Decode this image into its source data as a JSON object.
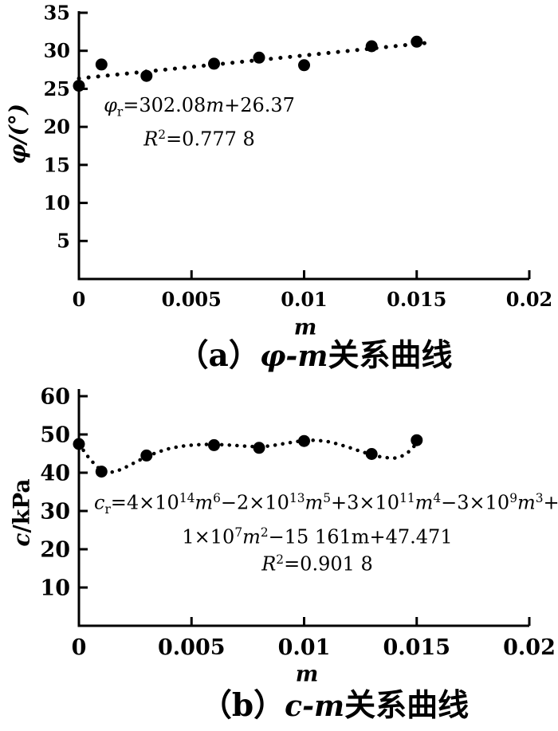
{
  "figure": {
    "background": "#ffffff",
    "ink_color": "#000000"
  },
  "chart_data": [
    {
      "id": "a",
      "type": "scatter",
      "caption_text": "（a）φ-m关系曲线",
      "caption": {
        "index": "（a）",
        "formula": "φ-m",
        "suffix": "关系曲线"
      },
      "xlabel": "m",
      "ylabel": "φ/(°)",
      "xlim": [
        0,
        0.02
      ],
      "ylim": [
        0,
        35
      ],
      "grid": false,
      "legend": null,
      "xticks": {
        "values": [
          0,
          0.005,
          0.01,
          0.015,
          0.02
        ],
        "labels": [
          "0",
          "0.005",
          "0.01",
          "0.015",
          "0.02"
        ]
      },
      "yticks": {
        "values": [
          5,
          10,
          15,
          20,
          25,
          30,
          35
        ],
        "labels": [
          "5",
          "10",
          "15",
          "20",
          "25",
          "30",
          "35"
        ]
      },
      "points": {
        "x": [
          0,
          0.001,
          0.003,
          0.006,
          0.008,
          0.01,
          0.013,
          0.015
        ],
        "y": [
          25.4,
          28.2,
          26.7,
          28.3,
          29.1,
          28.1,
          30.6,
          31.2
        ]
      },
      "fit": {
        "style": "dotted",
        "equation_text": "φr=302.08m+26.37",
        "r_squared_text": "R²=0.777 8",
        "line": [
          [
            0,
            26.37
          ],
          [
            0.01535,
            31.01
          ]
        ],
        "equation_lines": [
          [
            {
              "t": "φ",
              "s": "i"
            },
            {
              "t": "r",
              "s": "sub"
            },
            {
              "t": "=302.08",
              "s": ""
            },
            {
              "t": "m",
              "s": "i"
            },
            {
              "t": "+26.37",
              "s": ""
            }
          ],
          [
            {
              "t": "R",
              "s": "i"
            },
            {
              "t": "2",
              "s": "sup"
            },
            {
              "t": "=0.777 8",
              "s": ""
            }
          ]
        ]
      }
    },
    {
      "id": "b",
      "type": "scatter",
      "caption_text": "（b）c-m关系曲线",
      "caption": {
        "index": "（b）",
        "formula": "c-m",
        "suffix": "关系曲线"
      },
      "xlabel": "m",
      "ylabel": "c/kPa",
      "ylabel_segments": [
        {
          "t": "c",
          "s": "i"
        },
        {
          "t": "/kPa",
          "s": ""
        }
      ],
      "xlim": [
        0,
        0.02
      ],
      "ylim": [
        0,
        60
      ],
      "grid": false,
      "legend": null,
      "xticks": {
        "values": [
          0,
          0.005,
          0.01,
          0.015,
          0.02
        ],
        "labels": [
          "0",
          "0.005",
          "0.01",
          "0.015",
          "0.02"
        ]
      },
      "yticks": {
        "values": [
          10,
          20,
          30,
          40,
          50,
          60
        ],
        "labels": [
          "10",
          "20",
          "30",
          "40",
          "50",
          "60"
        ]
      },
      "points": {
        "x": [
          0,
          0.001,
          0.003,
          0.006,
          0.008,
          0.01,
          0.013,
          0.015
        ],
        "y": [
          47.5,
          40.3,
          44.5,
          47.2,
          46.5,
          48.3,
          44.9,
          48.5
        ]
      },
      "fit": {
        "style": "dotted",
        "equation_text": "cr=4×10^14m^6−2×10^13m^5+3×10^11m^4−3×10^9m^3+1×10^7m^2−15 161m+47.471",
        "r_squared_text": "R²=0.901 8",
        "line": [
          [
            0,
            47.5
          ],
          [
            0.0004,
            44.2
          ],
          [
            0.0008,
            41.5
          ],
          [
            0.0012,
            40.1
          ],
          [
            0.0016,
            40.2
          ],
          [
            0.002,
            41.2
          ],
          [
            0.0025,
            42.7
          ],
          [
            0.003,
            44.2
          ],
          [
            0.0035,
            45.4
          ],
          [
            0.004,
            46.3
          ],
          [
            0.0045,
            46.9
          ],
          [
            0.005,
            47.2
          ],
          [
            0.0055,
            47.4
          ],
          [
            0.006,
            47.4
          ],
          [
            0.0065,
            47.3
          ],
          [
            0.007,
            47.1
          ],
          [
            0.0075,
            46.9
          ],
          [
            0.008,
            46.8
          ],
          [
            0.0085,
            47.0
          ],
          [
            0.009,
            47.5
          ],
          [
            0.0095,
            48.0
          ],
          [
            0.01,
            48.4
          ],
          [
            0.0105,
            48.5
          ],
          [
            0.011,
            48.2
          ],
          [
            0.0115,
            47.5
          ],
          [
            0.012,
            46.6
          ],
          [
            0.0125,
            45.6
          ],
          [
            0.013,
            44.7
          ],
          [
            0.0135,
            44.0
          ],
          [
            0.014,
            43.8
          ],
          [
            0.0143,
            44.2
          ],
          [
            0.0146,
            45.2
          ],
          [
            0.0149,
            47.0
          ],
          [
            0.0151,
            48.4
          ]
        ],
        "equation_lines": [
          [
            {
              "t": "c",
              "s": "i"
            },
            {
              "t": "r",
              "s": "sub"
            },
            {
              "t": "=4×10",
              "s": ""
            },
            {
              "t": "14",
              "s": "sup"
            },
            {
              "t": "m",
              "s": "i"
            },
            {
              "t": "6",
              "s": "sup"
            },
            {
              "t": "−2×10",
              "s": ""
            },
            {
              "t": "13",
              "s": "sup"
            },
            {
              "t": "m",
              "s": "i"
            },
            {
              "t": "5",
              "s": "sup"
            },
            {
              "t": "+3×10",
              "s": ""
            },
            {
              "t": "11",
              "s": "sup"
            },
            {
              "t": "m",
              "s": "i"
            },
            {
              "t": "4",
              "s": "sup"
            },
            {
              "t": "−3×10",
              "s": ""
            },
            {
              "t": "9",
              "s": "sup"
            },
            {
              "t": "m",
              "s": "i"
            },
            {
              "t": "3",
              "s": "sup"
            },
            {
              "t": "+",
              "s": ""
            }
          ],
          [
            {
              "t": "1×10",
              "s": ""
            },
            {
              "t": "7",
              "s": "sup"
            },
            {
              "t": "m",
              "s": "i"
            },
            {
              "t": "2",
              "s": "sup"
            },
            {
              "t": "−15 161m+47.471",
              "s": ""
            }
          ],
          [
            {
              "t": "R",
              "s": "i"
            },
            {
              "t": "2",
              "s": "sup"
            },
            {
              "t": "=0.901 8",
              "s": ""
            }
          ]
        ]
      }
    }
  ]
}
